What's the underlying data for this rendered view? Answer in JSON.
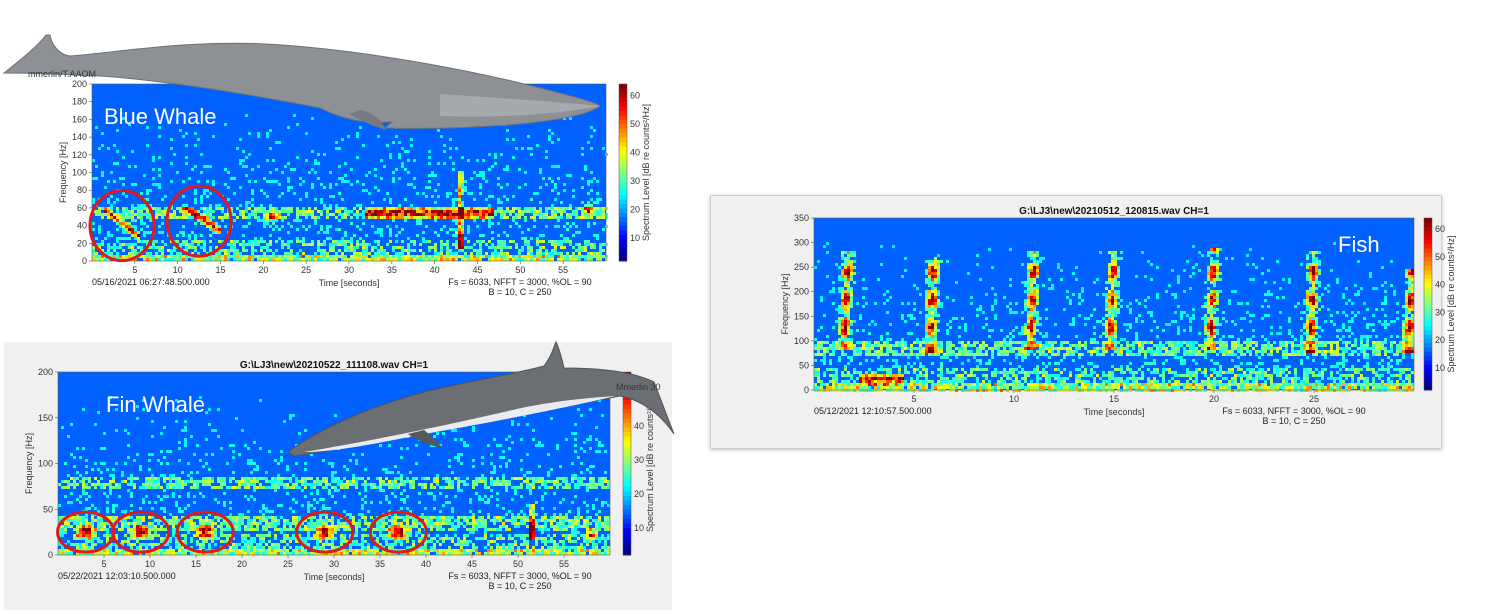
{
  "chart_data": [
    {
      "type": "heatmap",
      "id": "blue",
      "label": "Blue Whale",
      "title": "",
      "xlabel": "Time [seconds]",
      "ylabel": "Frequency [Hz]",
      "xlim": [
        0,
        60
      ],
      "ylim": [
        0,
        200
      ],
      "xticks": [
        5,
        10,
        15,
        20,
        25,
        30,
        35,
        40,
        45,
        50,
        55
      ],
      "yticks": [
        0,
        20,
        40,
        60,
        80,
        100,
        120,
        140,
        160,
        180,
        200
      ],
      "colorbar": {
        "label": "Spectrum Level [dB re counts²/Hz]",
        "ticks": [
          10,
          20,
          30,
          40,
          50,
          60
        ],
        "range": [
          2,
          64
        ]
      },
      "timestamp": "05/16/2021 06:27:48.500.000",
      "params1": "Fs = 6033, NFFT = 3000, %OL = 90",
      "params2": "B = 10, C = 250",
      "image_credit": "mmerlin/T.AAOM",
      "tones": [
        55
      ],
      "features": [
        {
          "kind": "sweep",
          "t0": 1.5,
          "t1": 5.5,
          "f0": 58,
          "f1": 28
        },
        {
          "kind": "sweep",
          "t0": 10.5,
          "t1": 15,
          "f0": 62,
          "f1": 34
        },
        {
          "kind": "spot",
          "t": 21,
          "f": 50
        },
        {
          "kind": "band",
          "t0": 32,
          "t1": 47,
          "f": 54
        },
        {
          "kind": "vline",
          "t": 43,
          "f0": 15,
          "f1": 100
        },
        {
          "kind": "spot",
          "t": 58,
          "f": 58
        }
      ],
      "circles": [
        {
          "t": 3.5,
          "f": 40
        },
        {
          "t": 12.5,
          "f": 45
        }
      ]
    },
    {
      "type": "heatmap",
      "id": "fin",
      "label": "Fin Whale",
      "title": "G:\\LJ3\\new\\20210522_111108.wav CH=1",
      "xlabel": "Time [seconds]",
      "ylabel": "Frequency [Hz]",
      "xlim": [
        0,
        60
      ],
      "ylim": [
        0,
        200
      ],
      "xticks": [
        5,
        10,
        15,
        20,
        25,
        30,
        35,
        40,
        45,
        50,
        55
      ],
      "yticks": [
        0,
        50,
        100,
        150,
        200
      ],
      "colorbar": {
        "label": "Spectrum Level [dB re counts²/Hz]",
        "ticks": [
          10,
          20,
          30,
          40,
          50
        ],
        "range": [
          2,
          56
        ]
      },
      "timestamp": "05/22/2021 12:03:10.500.000",
      "params1": "Fs = 6033, NFFT = 3000, %OL = 90",
      "params2": "B = 10, C = 250",
      "image_credit": "Mmerlin 30",
      "tones": [
        35,
        78
      ],
      "features": [
        {
          "kind": "blob",
          "t": 3,
          "f": 25
        },
        {
          "kind": "blob",
          "t": 9,
          "f": 25
        },
        {
          "kind": "blob",
          "t": 16,
          "f": 25
        },
        {
          "kind": "blob",
          "t": 29,
          "f": 25
        },
        {
          "kind": "blob",
          "t": 37,
          "f": 25
        },
        {
          "kind": "vline",
          "t": 51.5,
          "f0": 15,
          "f1": 55
        },
        {
          "kind": "spot",
          "t": 58,
          "f": 22
        }
      ],
      "circles": [
        {
          "t": 3,
          "f": 25
        },
        {
          "t": 9,
          "f": 25
        },
        {
          "t": 16,
          "f": 25
        },
        {
          "t": 29,
          "f": 25
        },
        {
          "t": 37,
          "f": 25
        }
      ]
    },
    {
      "type": "heatmap",
      "id": "fish",
      "label": "Fish",
      "title": "G:\\LJ3\\new\\20210512_120815.wav CH=1",
      "xlabel": "Time [seconds]",
      "ylabel": "Frequency [Hz]",
      "xlim": [
        0,
        30
      ],
      "ylim": [
        0,
        350
      ],
      "xticks": [
        5,
        10,
        15,
        20,
        25
      ],
      "yticks": [
        0,
        50,
        100,
        150,
        200,
        250,
        300,
        350
      ],
      "colorbar": {
        "label": "Spectrum Level [dB re counts²/Hz]",
        "ticks": [
          10,
          20,
          30,
          40,
          50,
          60
        ],
        "range": [
          2,
          64
        ]
      },
      "timestamp": "05/12/2021 12:10:57.500.000",
      "params1": "Fs = 6033, NFFT = 3000, %OL = 90",
      "params2": "B = 10, C = 250",
      "tones": [
        85
      ],
      "features": [
        {
          "kind": "pulse",
          "t": 1.5,
          "f0": 80,
          "f1": 280
        },
        {
          "kind": "pulse",
          "t": 5.8,
          "f0": 75,
          "f1": 270
        },
        {
          "kind": "pulse",
          "t": 10.8,
          "f0": 80,
          "f1": 285
        },
        {
          "kind": "pulse",
          "t": 14.8,
          "f0": 80,
          "f1": 285
        },
        {
          "kind": "pulse",
          "t": 19.8,
          "f0": 80,
          "f1": 290
        },
        {
          "kind": "pulse",
          "t": 24.8,
          "f0": 75,
          "f1": 285
        },
        {
          "kind": "pulse",
          "t": 29.7,
          "f0": 75,
          "f1": 245
        },
        {
          "kind": "band",
          "t0": 2.2,
          "t1": 4.5,
          "f": 22
        }
      ],
      "circles": []
    }
  ]
}
